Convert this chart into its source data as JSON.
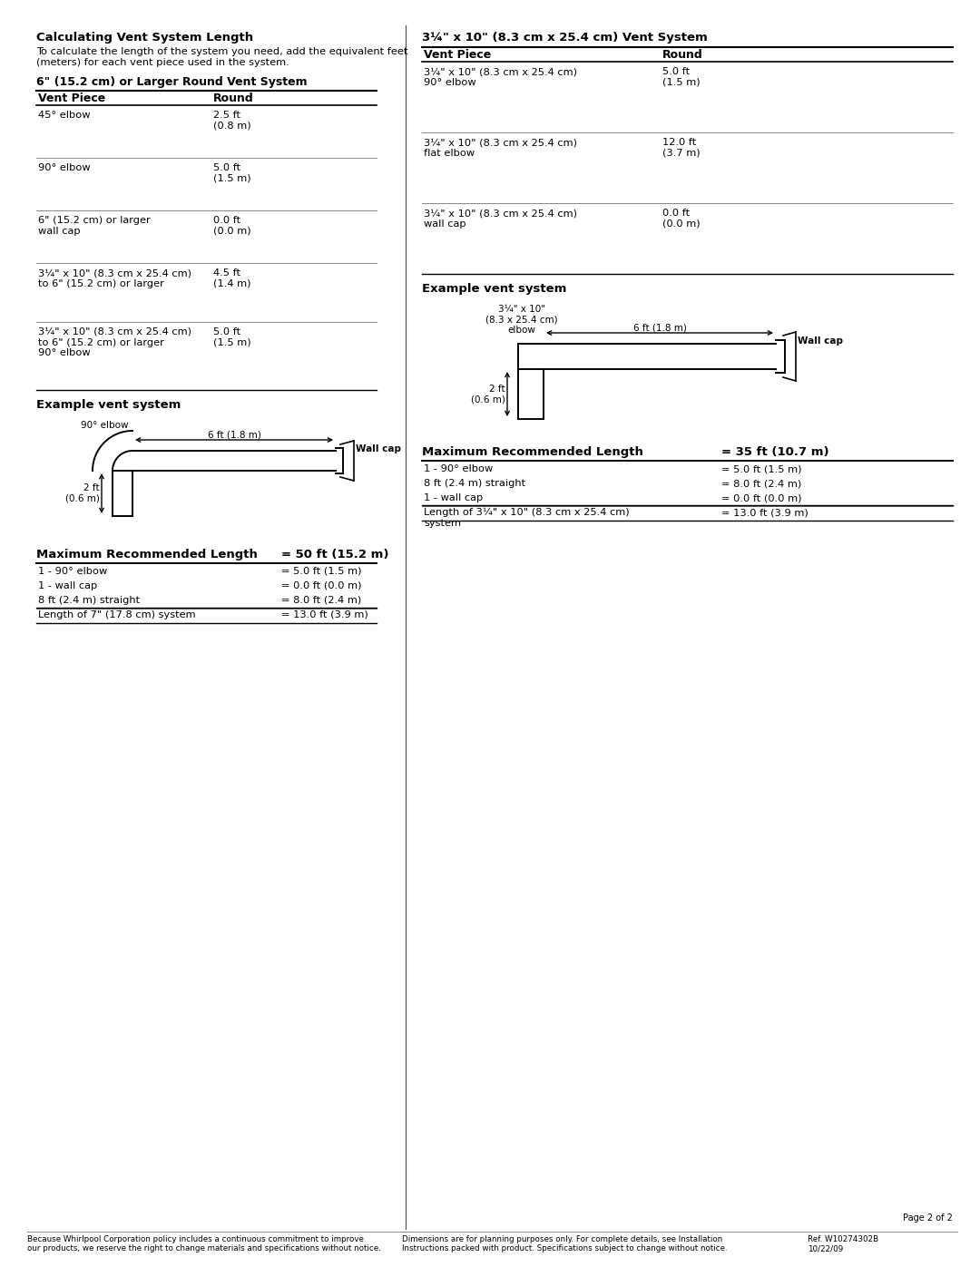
{
  "bg_color": "#ffffff",
  "page_width": 10.8,
  "page_height": 13.97,
  "left_title_bold": "Calculating Vent System Length",
  "left_intro": "To calculate the length of the system you need, add the equivalent feet\n(meters) for each vent piece used in the system.",
  "left_subtitle_bold": "6\" (15.2 cm) or Larger Round Vent System",
  "left_table_header": [
    "Vent Piece",
    "Round"
  ],
  "left_table_rows": [
    [
      "45° elbow",
      "2.5 ft\n(0.8 m)"
    ],
    [
      "90° elbow",
      "5.0 ft\n(1.5 m)"
    ],
    [
      "6\" (15.2 cm) or larger\nwall cap",
      "0.0 ft\n(0.0 m)"
    ],
    [
      "3¼\" x 10\" (8.3 cm x 25.4 cm)\nto 6\" (15.2 cm) or larger",
      "4.5 ft\n(1.4 m)"
    ],
    [
      "3¼\" x 10\" (8.3 cm x 25.4 cm)\nto 6\" (15.2 cm) or larger\n90° elbow",
      "5.0 ft\n(1.5 m)"
    ]
  ],
  "left_example_title": "Example vent system",
  "left_max_header": "Maximum Recommended Length",
  "left_max_value": "= 50 ft (15.2 m)",
  "left_max_rows": [
    [
      "1 - 90° elbow",
      "= 5.0 ft (1.5 m)"
    ],
    [
      "1 - wall cap",
      "= 0.0 ft (0.0 m)"
    ],
    [
      "8 ft (2.4 m) straight",
      "= 8.0 ft (2.4 m)"
    ],
    [
      "Length of 7\" (17.8 cm) system",
      "= 13.0 ft (3.9 m)"
    ]
  ],
  "right_title_bold": "3¼\" x 10\" (8.3 cm x 25.4 cm) Vent System",
  "right_table_header": [
    "Vent Piece",
    "Round"
  ],
  "right_table_rows": [
    [
      "3¼\" x 10\" (8.3 cm x 25.4 cm)\n90° elbow",
      "5.0 ft\n(1.5 m)"
    ],
    [
      "3¼\" x 10\" (8.3 cm x 25.4 cm)\nflat elbow",
      "12.0 ft\n(3.7 m)"
    ],
    [
      "3¼\" x 10\" (8.3 cm x 25.4 cm)\nwall cap",
      "0.0 ft\n(0.0 m)"
    ]
  ],
  "right_example_title": "Example vent system",
  "right_max_header": "Maximum Recommended Length",
  "right_max_value": "= 35 ft (10.7 m)",
  "right_max_rows": [
    [
      "1 - 90° elbow",
      "= 5.0 ft (1.5 m)"
    ],
    [
      "8 ft (2.4 m) straight",
      "= 8.0 ft (2.4 m)"
    ],
    [
      "1 - wall cap",
      "= 0.0 ft (0.0 m)"
    ],
    [
      "Length of 3¼\" x 10\" (8.3 cm x 25.4 cm)\nsystem",
      "= 13.0 ft (3.9 m)"
    ]
  ],
  "footer_left": "Because Whirlpool Corporation policy includes a continuous commitment to improve\nour products, we reserve the right to change materials and specifications without notice.",
  "footer_center": "Dimensions are for planning purposes only. For complete details, see Installation\nInstructions packed with product. Specifications subject to change without notice.",
  "footer_right": "Ref. W10274302B\n10/22/09",
  "page_num": "Page 2 of 2"
}
